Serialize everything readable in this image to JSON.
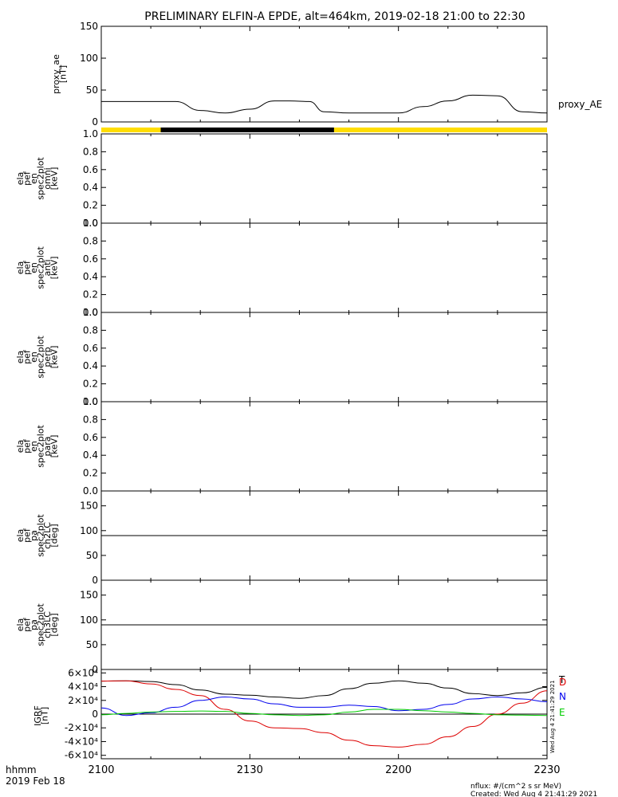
{
  "title": "PRELIMINARY ELFIN-A EPDE, alt=464km, 2019-02-18 21:00 to 22:30",
  "time_axis": {
    "ticks": [
      "2100",
      "2130",
      "2200",
      "2230"
    ],
    "corner_label_1": "hhmm",
    "corner_label_2": "2019 Feb 18"
  },
  "footer": {
    "nflux": "nflux: #/(cm^2 s sr MeV)",
    "created": "Created: Wed Aug  4 21:41:29 2021",
    "vertical_stamp": "Wed Aug  4 21:41:29 2021"
  },
  "colors": {
    "sunlit": "#ffdd00",
    "eclipse": "#000000",
    "T": "#000000",
    "D": "#dd0000",
    "N": "#0000ee",
    "E": "#00cc00"
  },
  "chart_data": [
    {
      "type": "line",
      "ylabel_lines": [
        "proxy_ae",
        "[nT]"
      ],
      "ylim": [
        0,
        150
      ],
      "yticks": [
        "0",
        "50",
        "100",
        "150"
      ],
      "series": [
        {
          "name": "proxy_AE",
          "x": [
            "21:00",
            "21:10",
            "21:15",
            "21:20",
            "21:25",
            "21:30",
            "21:35",
            "21:38",
            "21:42",
            "21:45",
            "21:50",
            "21:55",
            "22:00",
            "22:05",
            "22:10",
            "22:15",
            "22:20",
            "22:25",
            "22:30"
          ],
          "values": [
            32,
            32,
            32,
            18,
            14,
            20,
            33,
            33,
            32,
            16,
            14,
            14,
            14,
            24,
            33,
            42,
            41,
            16,
            14
          ]
        }
      ]
    },
    {
      "type": "bar",
      "description_bar": true,
      "segments": [
        {
          "state": "sunlit",
          "from": "21:00",
          "to": "21:12"
        },
        {
          "state": "eclipse",
          "from": "21:12",
          "to": "21:47"
        },
        {
          "state": "sunlit",
          "from": "21:47",
          "to": "22:30"
        }
      ]
    },
    {
      "type": "heatmap",
      "ylabel_lines": [
        "ela",
        "pef",
        "en",
        "spec2plot",
        "omni",
        "[keV]"
      ],
      "ylim": [
        0,
        1
      ],
      "yticks": [
        "0.0",
        "0.2",
        "0.4",
        "0.6",
        "0.8",
        "1.0"
      ]
    },
    {
      "type": "heatmap",
      "ylabel_lines": [
        "ela",
        "pef",
        "en",
        "spec2plot",
        "anti",
        "[keV]"
      ],
      "ylim": [
        0,
        1
      ],
      "yticks": [
        "0.0",
        "0.2",
        "0.4",
        "0.6",
        "0.8",
        "1.0"
      ]
    },
    {
      "type": "heatmap",
      "ylabel_lines": [
        "ela",
        "pef",
        "en",
        "spec2plot",
        "perp",
        "[keV]"
      ],
      "ylim": [
        0,
        1
      ],
      "yticks": [
        "0.0",
        "0.2",
        "0.4",
        "0.6",
        "0.8",
        "1.0"
      ]
    },
    {
      "type": "heatmap",
      "ylabel_lines": [
        "ela",
        "pef",
        "en",
        "spec2plot",
        "para",
        "[keV]"
      ],
      "ylim": [
        0,
        1
      ],
      "yticks": [
        "0.0",
        "0.2",
        "0.4",
        "0.6",
        "0.8",
        "1.0"
      ]
    },
    {
      "type": "line",
      "ylabel_lines": [
        "ela",
        "pef",
        "pa",
        "spec2plot",
        "ch2LC",
        "[deg]"
      ],
      "ylim": [
        0,
        180
      ],
      "yticks": [
        "0",
        "50",
        "100",
        "150"
      ],
      "reference_line": 90
    },
    {
      "type": "line",
      "ylabel_lines": [
        "ela",
        "pef",
        "pa",
        "spec2plot",
        "ch3LC",
        "[deg]"
      ],
      "ylim": [
        0,
        180
      ],
      "yticks": [
        "0",
        "50",
        "100",
        "150"
      ],
      "reference_line": 90
    },
    {
      "type": "line",
      "ylabel_lines": [
        "IGRF",
        "[nT]"
      ],
      "ylim": [
        -65000,
        65000
      ],
      "yticks": [
        "-6×10⁴",
        "-4×10⁴",
        "-2×10⁴",
        "0",
        "2×10⁴",
        "4×10⁴",
        "6×10⁴"
      ],
      "ytick_values": [
        -60000,
        -40000,
        -20000,
        0,
        20000,
        40000,
        60000
      ],
      "x": [
        0,
        5,
        10,
        15,
        20,
        25,
        30,
        35,
        40,
        45,
        50,
        55,
        60,
        65,
        70,
        75,
        80,
        85,
        90
      ],
      "series": [
        {
          "name": "T",
          "values": [
            48000,
            48500,
            47500,
            43000,
            35000,
            29000,
            27500,
            25000,
            23000,
            27000,
            37000,
            45000,
            48500,
            45000,
            38000,
            30000,
            27000,
            31000,
            39000
          ]
        },
        {
          "name": "D",
          "values": [
            48000,
            48500,
            44000,
            36000,
            27000,
            7000,
            -10000,
            -20000,
            -21000,
            -27000,
            -38000,
            -46000,
            -48000,
            -44000,
            -33000,
            -18000,
            0,
            16000,
            34000
          ]
        },
        {
          "name": "N",
          "values": [
            9000,
            -2000,
            2000,
            10000,
            20000,
            25000,
            22000,
            15000,
            10000,
            10000,
            13000,
            11000,
            5000,
            7000,
            14000,
            22000,
            25000,
            22000,
            18000
          ]
        },
        {
          "name": "E",
          "values": [
            -1000,
            1000,
            3000,
            4000,
            4500,
            4000,
            1000,
            -1000,
            -2000,
            -1000,
            3000,
            7000,
            7000,
            5000,
            3000,
            1000,
            -1000,
            -1500,
            -2000
          ]
        }
      ]
    }
  ]
}
